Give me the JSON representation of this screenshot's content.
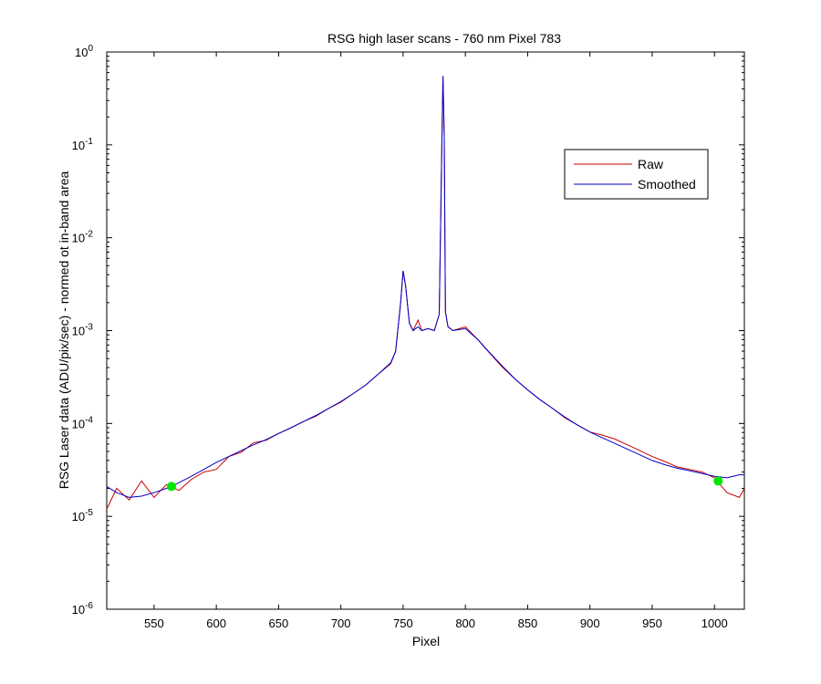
{
  "chart_data": {
    "type": "line",
    "title": "RSG high laser scans  - 760 nm    Pixel 783",
    "xlabel": "Pixel",
    "ylabel": "RSG Laser data (ADU/pix/sec) - normed ot in-band area",
    "xlim": [
      512,
      1024
    ],
    "ylim": [
      1e-06,
      1
    ],
    "yscale": "log",
    "x_ticks": [
      550,
      600,
      650,
      700,
      750,
      800,
      850,
      900,
      950,
      1000
    ],
    "y_ticks": [
      {
        "value": 1e-06,
        "base": "10",
        "exp": "-6"
      },
      {
        "value": 1e-05,
        "base": "10",
        "exp": "-5"
      },
      {
        "value": 0.0001,
        "base": "10",
        "exp": "-4"
      },
      {
        "value": 0.001,
        "base": "10",
        "exp": "-3"
      },
      {
        "value": 0.01,
        "base": "10",
        "exp": "-2"
      },
      {
        "value": 0.1,
        "base": "10",
        "exp": "-1"
      },
      {
        "value": 1,
        "base": "10",
        "exp": "0"
      }
    ],
    "grid": false,
    "legend_position": "top-right",
    "series": [
      {
        "name": "Raw",
        "color": "#cc0000",
        "x": [
          512,
          520,
          530,
          540,
          550,
          560,
          570,
          580,
          590,
          600,
          610,
          620,
          630,
          640,
          650,
          660,
          670,
          680,
          690,
          700,
          710,
          720,
          730,
          740,
          744,
          748,
          750,
          752,
          755,
          758,
          762,
          765,
          770,
          775,
          779,
          781,
          782,
          783,
          784,
          786,
          790,
          800,
          810,
          820,
          830,
          840,
          850,
          860,
          870,
          880,
          890,
          900,
          910,
          920,
          930,
          940,
          950,
          960,
          970,
          980,
          990,
          1000,
          1010,
          1020,
          1024
        ],
        "y": [
          1.2e-05,
          2e-05,
          1.5e-05,
          2.4e-05,
          1.6e-05,
          2.2e-05,
          1.9e-05,
          2.5e-05,
          3e-05,
          3.2e-05,
          4.4e-05,
          4.9e-05,
          6.2e-05,
          6.6e-05,
          7.8e-05,
          9e-05,
          0.000105,
          0.00012,
          0.000145,
          0.00017,
          0.00021,
          0.00026,
          0.00034,
          0.00044,
          0.0006,
          0.002,
          0.0044,
          0.003,
          0.0012,
          0.001,
          0.0013,
          0.001,
          0.00105,
          0.001,
          0.0015,
          0.08,
          0.55,
          0.12,
          0.0016,
          0.0011,
          0.001,
          0.0011,
          0.0008,
          0.00056,
          0.0004,
          0.0003,
          0.00023,
          0.00018,
          0.000145,
          0.000115,
          9.6e-05,
          8.1e-05,
          7.5e-05,
          6.8e-05,
          5.9e-05,
          5.1e-05,
          4.4e-05,
          3.9e-05,
          3.4e-05,
          3.2e-05,
          3e-05,
          2.6e-05,
          1.8e-05,
          1.6e-05,
          2e-05
        ]
      },
      {
        "name": "Smoothed",
        "color": "#0000cc",
        "x": [
          512,
          520,
          530,
          540,
          550,
          560,
          570,
          580,
          590,
          600,
          610,
          620,
          630,
          640,
          650,
          660,
          670,
          680,
          690,
          700,
          710,
          720,
          730,
          740,
          744,
          748,
          750,
          752,
          755,
          758,
          762,
          765,
          770,
          775,
          779,
          781,
          782,
          783,
          784,
          786,
          790,
          800,
          810,
          820,
          830,
          840,
          850,
          860,
          870,
          880,
          890,
          900,
          910,
          920,
          930,
          940,
          950,
          960,
          970,
          980,
          990,
          1000,
          1010,
          1020,
          1024
        ],
        "y": [
          2.1e-05,
          1.8e-05,
          1.6e-05,
          1.65e-05,
          1.8e-05,
          2e-05,
          2.3e-05,
          2.7e-05,
          3.2e-05,
          3.8e-05,
          4.4e-05,
          5.1e-05,
          5.9e-05,
          6.7e-05,
          7.8e-05,
          9e-05,
          0.000105,
          0.000122,
          0.000145,
          0.000172,
          0.00021,
          0.00026,
          0.00034,
          0.00045,
          0.0006,
          0.002,
          0.0044,
          0.003,
          0.0012,
          0.001,
          0.0011,
          0.001,
          0.00105,
          0.001,
          0.0015,
          0.08,
          0.55,
          0.12,
          0.0016,
          0.0011,
          0.001,
          0.00105,
          0.0008,
          0.00057,
          0.00041,
          0.0003,
          0.00023,
          0.00018,
          0.000145,
          0.000117,
          9.6e-05,
          8.1e-05,
          7e-05,
          6.1e-05,
          5.3e-05,
          4.6e-05,
          4e-05,
          3.6e-05,
          3.3e-05,
          3.1e-05,
          2.9e-05,
          2.7e-05,
          2.6e-05,
          2.8e-05,
          2.8e-05
        ]
      }
    ],
    "markers": [
      {
        "x": 564,
        "y": 2.1e-05,
        "color": "#00e600"
      },
      {
        "x": 1003,
        "y": 2.4e-05,
        "color": "#00e600"
      }
    ]
  }
}
